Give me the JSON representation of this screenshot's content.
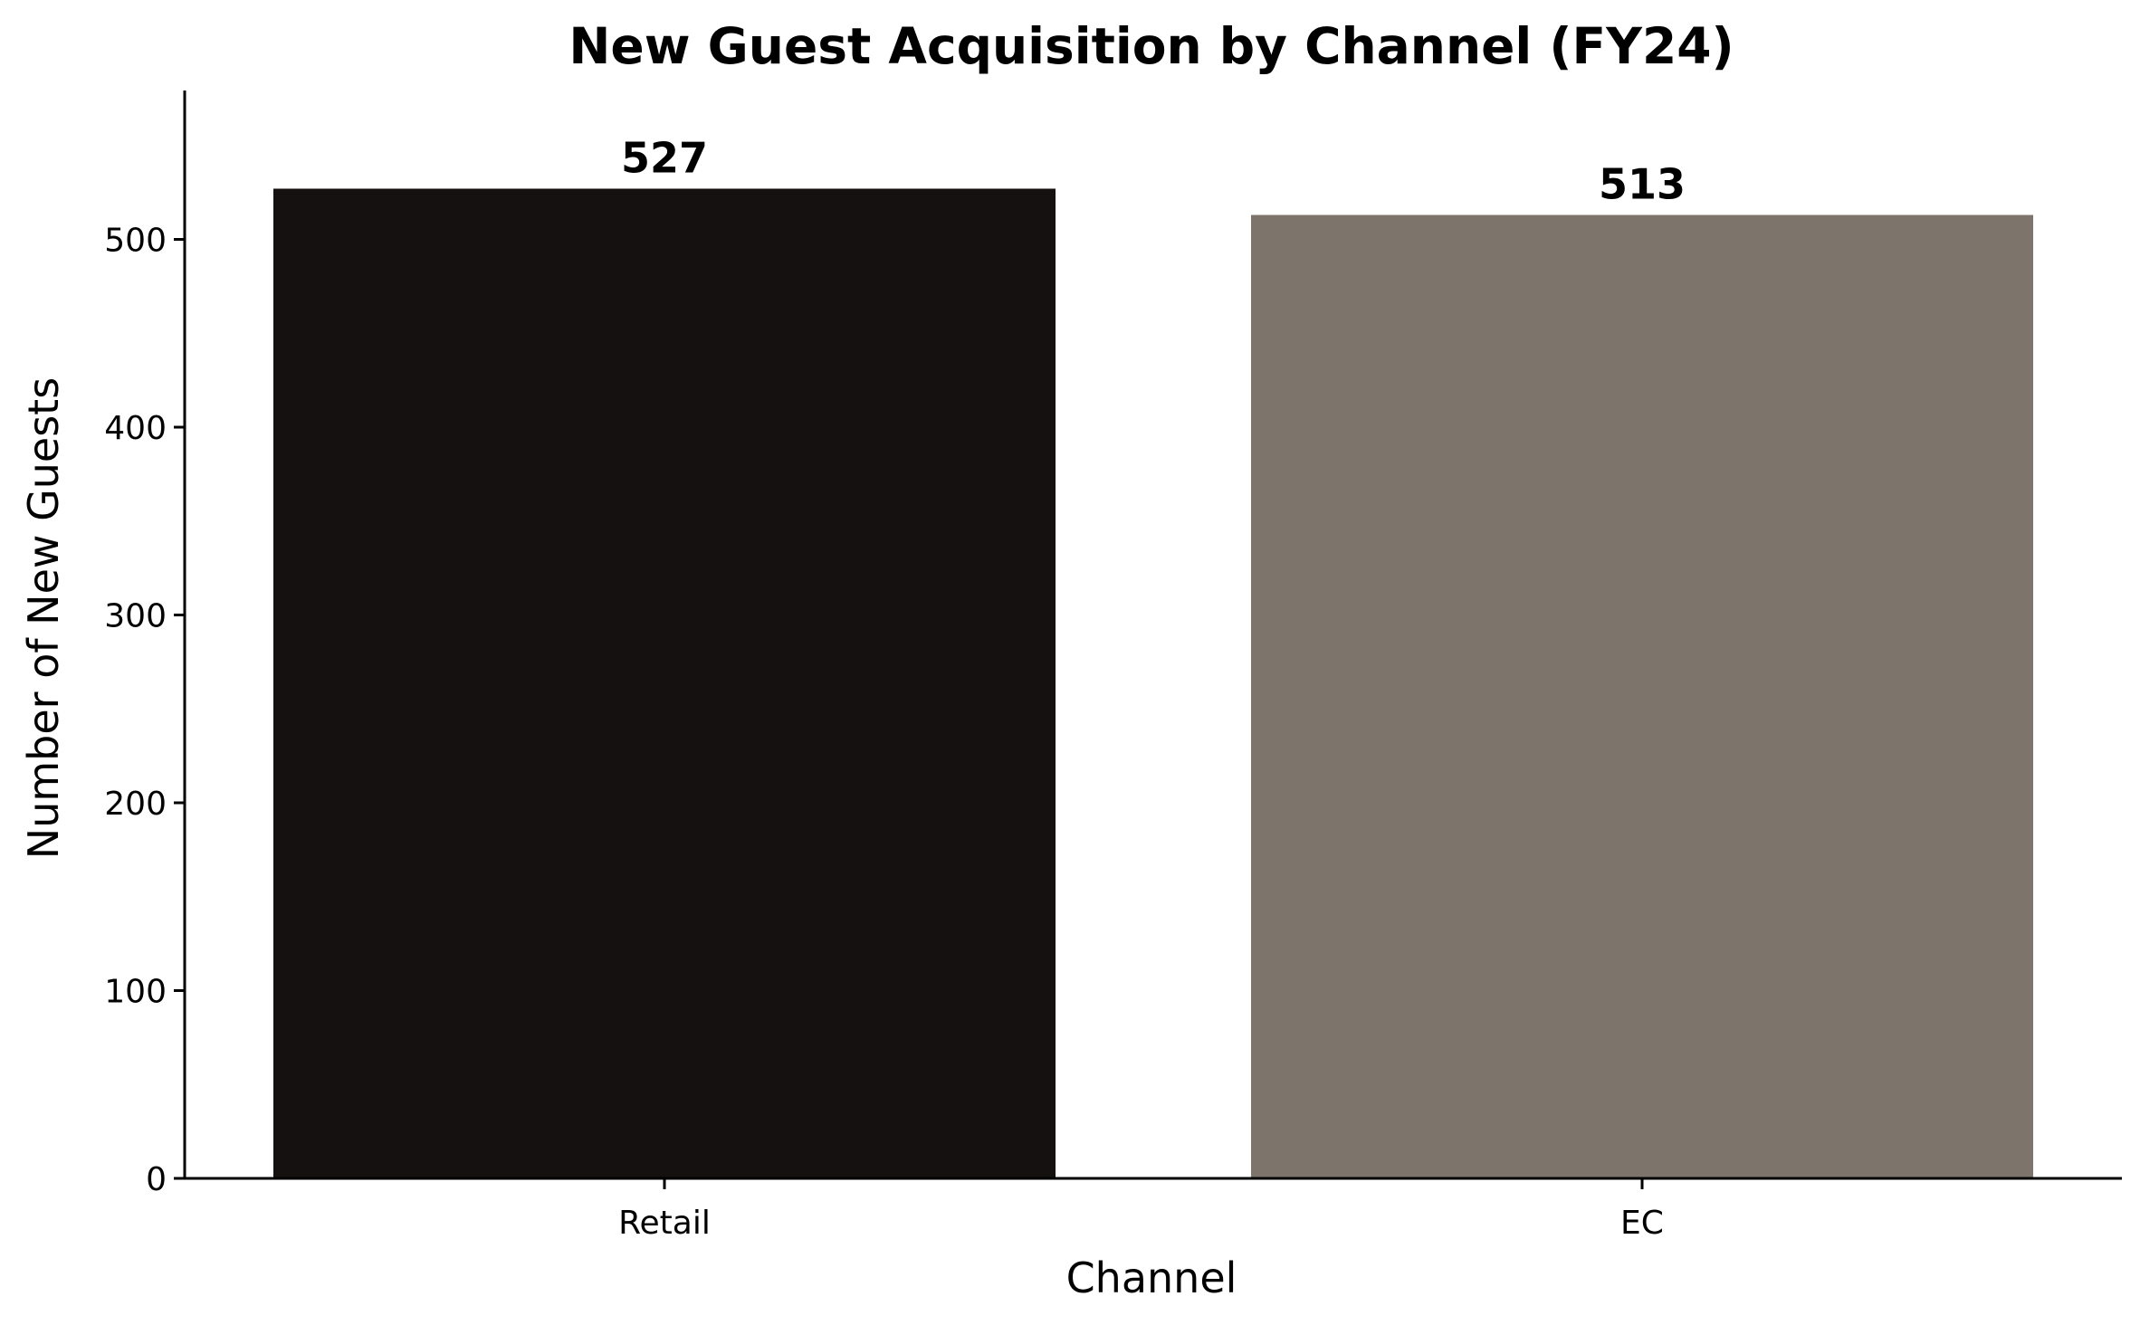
{
  "chart_data": {
    "type": "bar",
    "title": "New Guest Acquisition by Channel (FY24)",
    "xlabel": "Channel",
    "ylabel": "Number of New Guests",
    "categories": [
      "Retail",
      "EC"
    ],
    "values": [
      527,
      513
    ],
    "value_labels": [
      "527",
      "513"
    ],
    "colors": [
      "#151110",
      "#7d746b"
    ],
    "ylim": [
      0,
      580
    ],
    "yticks": [
      0,
      100,
      200,
      300,
      400,
      500
    ],
    "grid": false,
    "legend": "none"
  }
}
